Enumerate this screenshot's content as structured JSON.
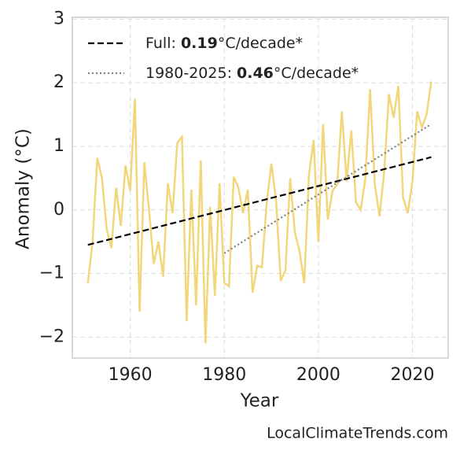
{
  "chart_data": {
    "type": "line",
    "x_label": "Year",
    "y_label": "Anomaly (°C)",
    "credit": "LocalClimateTrends.com",
    "xlim": [
      1947.7,
      2027.6
    ],
    "ylim": [
      -2.33,
      3.03
    ],
    "xticks": [
      1960,
      1980,
      2000,
      2020
    ],
    "yticks": [
      {
        "value": -2,
        "label": "−2"
      },
      {
        "value": -1,
        "label": "−1"
      },
      0,
      1,
      2,
      3
    ],
    "grid": true,
    "legend": "upper left",
    "series": [
      {
        "color": "#f1d77a",
        "style": "solid",
        "x": [
          1951,
          1952,
          1953,
          1954,
          1955,
          1956,
          1957,
          1958,
          1959,
          1960,
          1961,
          1962,
          1963,
          1964,
          1965,
          1966,
          1967,
          1968,
          1969,
          1970,
          1971,
          1972,
          1973,
          1974,
          1975,
          1976,
          1977,
          1978,
          1979,
          1980,
          1981,
          1982,
          1983,
          1984,
          1985,
          1986,
          1987,
          1988,
          1989,
          1990,
          1991,
          1992,
          1993,
          1994,
          1995,
          1996,
          1997,
          1998,
          1999,
          2000,
          2001,
          2002,
          2003,
          2004,
          2005,
          2006,
          2007,
          2008,
          2009,
          2010,
          2011,
          2012,
          2013,
          2014,
          2015,
          2016,
          2017,
          2018,
          2019,
          2020,
          2021,
          2022,
          2023,
          2024
        ],
        "values": [
          -1.15,
          -0.5,
          0.82,
          0.5,
          -0.3,
          -0.6,
          0.35,
          -0.25,
          0.7,
          0.3,
          1.75,
          -1.6,
          0.75,
          0.0,
          -0.85,
          -0.5,
          -1.05,
          0.42,
          -0.05,
          1.05,
          1.15,
          -1.75,
          0.32,
          -1.5,
          0.78,
          -2.1,
          0.05,
          -1.35,
          0.42,
          -1.15,
          -1.2,
          0.52,
          0.35,
          -0.05,
          0.32,
          -1.3,
          -0.88,
          -0.9,
          0.1,
          0.73,
          0.15,
          -1.12,
          -0.95,
          0.5,
          -0.35,
          -0.65,
          -1.15,
          0.55,
          1.1,
          -0.5,
          1.35,
          -0.15,
          0.3,
          0.4,
          1.55,
          0.45,
          1.25,
          0.12,
          0.0,
          0.5,
          1.9,
          0.4,
          -0.1,
          0.6,
          1.82,
          1.45,
          1.95,
          0.2,
          -0.05,
          0.45,
          1.55,
          1.3,
          1.5,
          2.02
        ]
      },
      {
        "color": "#000000",
        "style": "dashed",
        "name_prefix": "Full: ",
        "slope": 0.19,
        "name_suffix": "°C/decade*",
        "x": [
          1951,
          2024
        ],
        "values": [
          -0.55,
          0.83
        ]
      },
      {
        "color": "#808080",
        "style": "dotted",
        "name_prefix": "1980-2025: ",
        "slope": 0.46,
        "name_suffix": "°C/decade*",
        "x": [
          1980,
          2024
        ],
        "values": [
          -0.68,
          1.35
        ]
      }
    ]
  }
}
